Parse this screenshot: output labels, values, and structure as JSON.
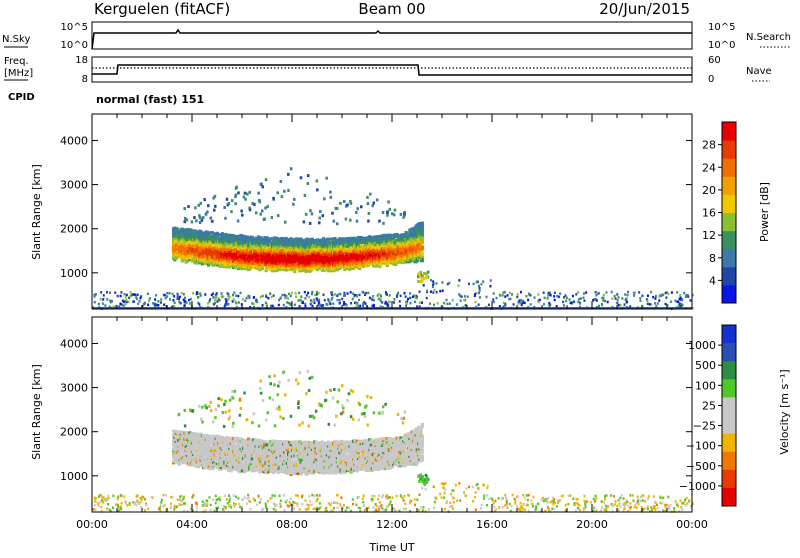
{
  "header": {
    "station": "Kerguelen (fitACF)",
    "beam": "Beam 00",
    "date": "20/Jun/2015"
  },
  "top_panels": {
    "nsky_label": "N.Sky",
    "nsky_ticks": [
      "10^5",
      "10^0"
    ],
    "nsearch_label": "N.Search",
    "nsearch_ticks": [
      "10^5",
      "10^0"
    ],
    "freq_label_1": "Freq.",
    "freq_label_2": "[MHz]",
    "freq_ticks": [
      "18",
      "8"
    ],
    "nave_label": "Nave",
    "nave_ticks": [
      "60",
      "0"
    ],
    "cpid_label": "CPID",
    "cpid_value": "normal (fast) 151"
  },
  "chart_data": [
    {
      "type": "heatmap",
      "title": "",
      "ylabel": "Slant Range [km]",
      "xlabel": "",
      "ylim": [
        180,
        4600
      ],
      "xlim": [
        0,
        24
      ],
      "yticks": [
        "1000",
        "2000",
        "3000",
        "4000"
      ],
      "colorbar": {
        "label": "Power [dB]",
        "ticks": [
          "4",
          "8",
          "12",
          "16",
          "20",
          "24",
          "28"
        ],
        "colors": [
          "#0a14e6",
          "#1e46a8",
          "#3c78aa",
          "#3a9060",
          "#88c030",
          "#f0c800",
          "#f0a000",
          "#f06e00",
          "#e63c00",
          "#e60000"
        ]
      },
      "echo_regions": [
        {
          "name": "main band",
          "t": [
            3.2,
            13.2
          ],
          "range_km": [
            1000,
            2100
          ],
          "peak_power_db": 30
        },
        {
          "name": "upper scatter",
          "t": [
            3.4,
            12.6
          ],
          "range_km": [
            2100,
            3500
          ],
          "power_db": 8
        },
        {
          "name": "near-range clutter",
          "t": [
            0,
            24
          ],
          "range_km": [
            180,
            600
          ],
          "power_db": 6
        }
      ]
    },
    {
      "type": "heatmap",
      "title": "",
      "ylabel": "Slant Range [km]",
      "xlabel": "Time UT",
      "ylim": [
        180,
        4600
      ],
      "xlim": [
        0,
        24
      ],
      "yticks": [
        "1000",
        "2000",
        "3000",
        "4000"
      ],
      "xticks": [
        "00:00",
        "04:00",
        "08:00",
        "12:00",
        "16:00",
        "20:00",
        "00:00"
      ],
      "colorbar": {
        "label": "Velocity [m s⁻¹]",
        "ticks": [
          "1000",
          "500",
          "100",
          "25",
          "−25",
          "−100",
          "−500",
          "−1000"
        ],
        "colors": [
          "#1432d2",
          "#2850b4",
          "#2d8c46",
          "#50c828",
          "#c8c8c8",
          "#c8c8c8",
          "#f0b400",
          "#f07800",
          "#e63c00",
          "#e60000"
        ]
      },
      "echo_regions": [
        {
          "name": "main band",
          "t": [
            3.2,
            13.2
          ],
          "range_km": [
            1000,
            2100
          ],
          "velocity_ms": 0
        },
        {
          "name": "near-range clutter",
          "t": [
            0,
            24
          ],
          "range_km": [
            180,
            600
          ],
          "velocity_ms": -100
        }
      ]
    }
  ]
}
